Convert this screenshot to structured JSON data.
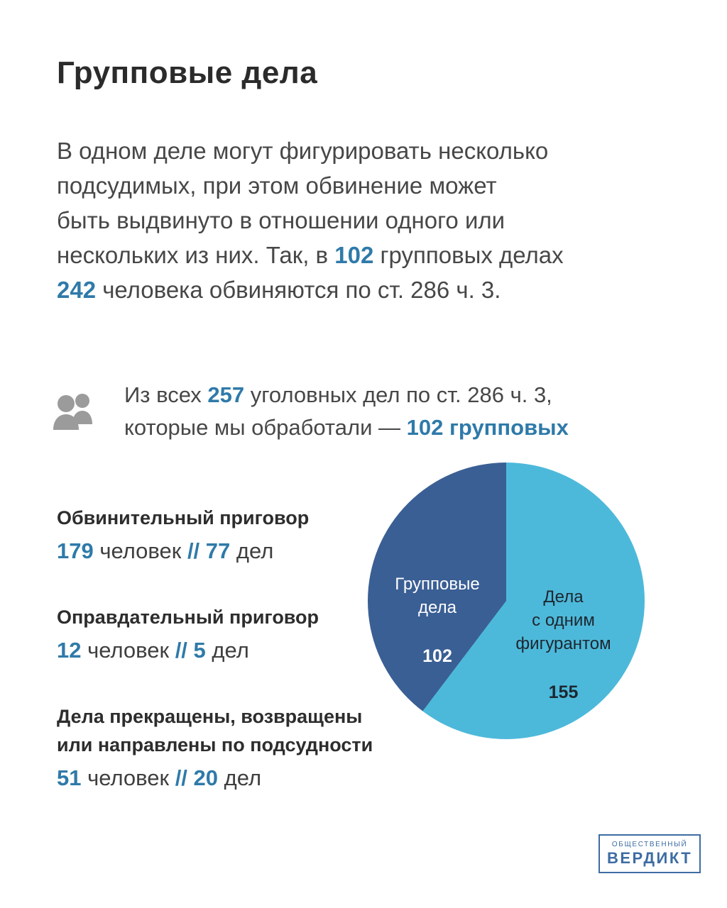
{
  "page": {
    "title": "Групповые дела"
  },
  "colors": {
    "accent": "#2f7aa9",
    "dark_slice": "#3a5f94",
    "light_slice": "#4db9da",
    "icon_gray": "#9b9b9b",
    "logo_blue": "#3e6ca3"
  },
  "intro": {
    "lines": [
      [
        {
          "t": "В одном деле могут фигурировать несколько"
        }
      ],
      [
        {
          "t": "подсудимых, при этом обвинение может"
        }
      ],
      [
        {
          "t": "быть выдвинуто в отношении одного или"
        }
      ],
      [
        {
          "t": "нескольких из них. Так, в "
        },
        {
          "t": "102",
          "hl": true
        },
        {
          "t": " групповых делах"
        }
      ],
      [
        {
          "t": "242",
          "hl": true
        },
        {
          "t": " человека обвиняются по ст. 286 ч. 3."
        }
      ]
    ]
  },
  "info": {
    "icon": "people-icon",
    "lines": [
      [
        {
          "t": "Из всех "
        },
        {
          "t": "257",
          "hl": true
        },
        {
          "t": " уголовных дел по ст. 286 ч. 3,"
        }
      ],
      [
        {
          "t": "которые мы обработали — "
        },
        {
          "t": "102 групповых",
          "hl": true
        }
      ]
    ]
  },
  "stats": [
    {
      "heading": "Обвинительный приговор",
      "line": [
        {
          "t": "179",
          "hl": true
        },
        {
          "t": " человек "
        },
        {
          "t": "//",
          "hl": true
        },
        {
          "t": " "
        },
        {
          "t": "77",
          "hl": true
        },
        {
          "t": " дел"
        }
      ]
    },
    {
      "heading": "Оправдательный приговор",
      "line": [
        {
          "t": "12",
          "hl": true
        },
        {
          "t": " человек "
        },
        {
          "t": "//",
          "hl": true
        },
        {
          "t": " "
        },
        {
          "t": "5",
          "hl": true
        },
        {
          "t": " дел"
        }
      ]
    },
    {
      "heading": "Дела прекращены, возвращены\nили направлены по подсудности",
      "line": [
        {
          "t": "51",
          "hl": true
        },
        {
          "t": " человек "
        },
        {
          "t": "//",
          "hl": true
        },
        {
          "t": " "
        },
        {
          "t": "20",
          "hl": true
        },
        {
          "t": " дел"
        }
      ]
    }
  ],
  "chart_data": {
    "type": "pie",
    "total": 257,
    "start_angle_deg": 0,
    "legend_position": "inside",
    "slices": [
      {
        "label": "Дела с одним фигурантом",
        "label_display": "Дела\nс одним\nфигурантом",
        "value": 155,
        "color": "#4db9da"
      },
      {
        "label": "Групповые дела",
        "label_display": "Групповые\nдела",
        "value": 102,
        "color": "#3a5f94"
      }
    ]
  },
  "logo": {
    "line1": "ОБЩЕСТВЕННЫЙ",
    "line2": "ВЕРДИКТ"
  }
}
